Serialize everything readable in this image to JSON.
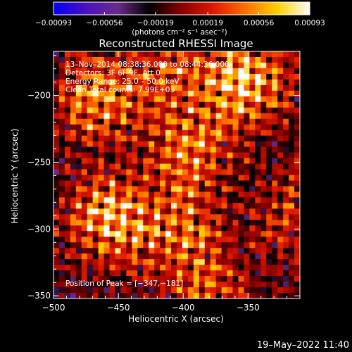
{
  "chart_data": {
    "type": "heatmap",
    "title": "Reconstructed RHESSI Image",
    "xlabel": "Heliocentric X (arcsec)",
    "ylabel": "Heliocentric Y (arcsec)",
    "xlim": [
      -500,
      -310
    ],
    "ylim": [
      -352,
      -167
    ],
    "x_ticks": [
      -500,
      -450,
      -400,
      -350
    ],
    "x_tick_labels": [
      "−500",
      "−450",
      "−400",
      "−350"
    ],
    "y_ticks": [
      -200,
      -250,
      -300,
      -350
    ],
    "y_tick_labels": [
      "−200",
      "−250",
      "−300",
      "−350"
    ],
    "colorbar": {
      "range": [
        -0.00093,
        0.00093
      ],
      "ticks": [
        -0.00093,
        -0.00056,
        -0.00019,
        0.00019,
        0.00056,
        0.00093
      ],
      "tick_labels": [
        "−0.00093",
        "−0.00056",
        "−0.00019",
        "0.00019",
        "0.00056",
        "0.00093"
      ],
      "units_label": "(photons cm⁻² s⁻¹ asec⁻²)",
      "colors": [
        "#0000ff",
        "#4a10c0",
        "#6a2a8a",
        "#000000",
        "#8a0000",
        "#e01800",
        "#ff7000",
        "#ffd000",
        "#ffffff"
      ]
    },
    "annotations": [
      "13–Nov–2014 08:38:36.000 to 08:44:36.000",
      "Detectors: 3F 6F 9F, Att 0",
      "Energy Range: 25.0 – 50.0 keV",
      "Clean     Total counts: 7.99E+03"
    ],
    "peak_label": "Position of Peak = [−347,−181]",
    "peak": [
      -347,
      -181
    ],
    "bright_regions": [
      {
        "x": -458,
        "y": -293,
        "level": 0.9
      },
      {
        "x": -352,
        "y": -188,
        "level": 1.0
      },
      {
        "x": -465,
        "y": -203,
        "level": 0.75
      },
      {
        "x": -395,
        "y": -242,
        "level": 0.65
      },
      {
        "x": -405,
        "y": -300,
        "level": 0.6
      },
      {
        "x": -380,
        "y": -345,
        "level": 0.55
      },
      {
        "x": -408,
        "y": -185,
        "level": 0.5
      },
      {
        "x": -315,
        "y": -290,
        "level": 0.45
      }
    ]
  },
  "footer": {
    "timestamp": "19–May–2022 11:40"
  }
}
